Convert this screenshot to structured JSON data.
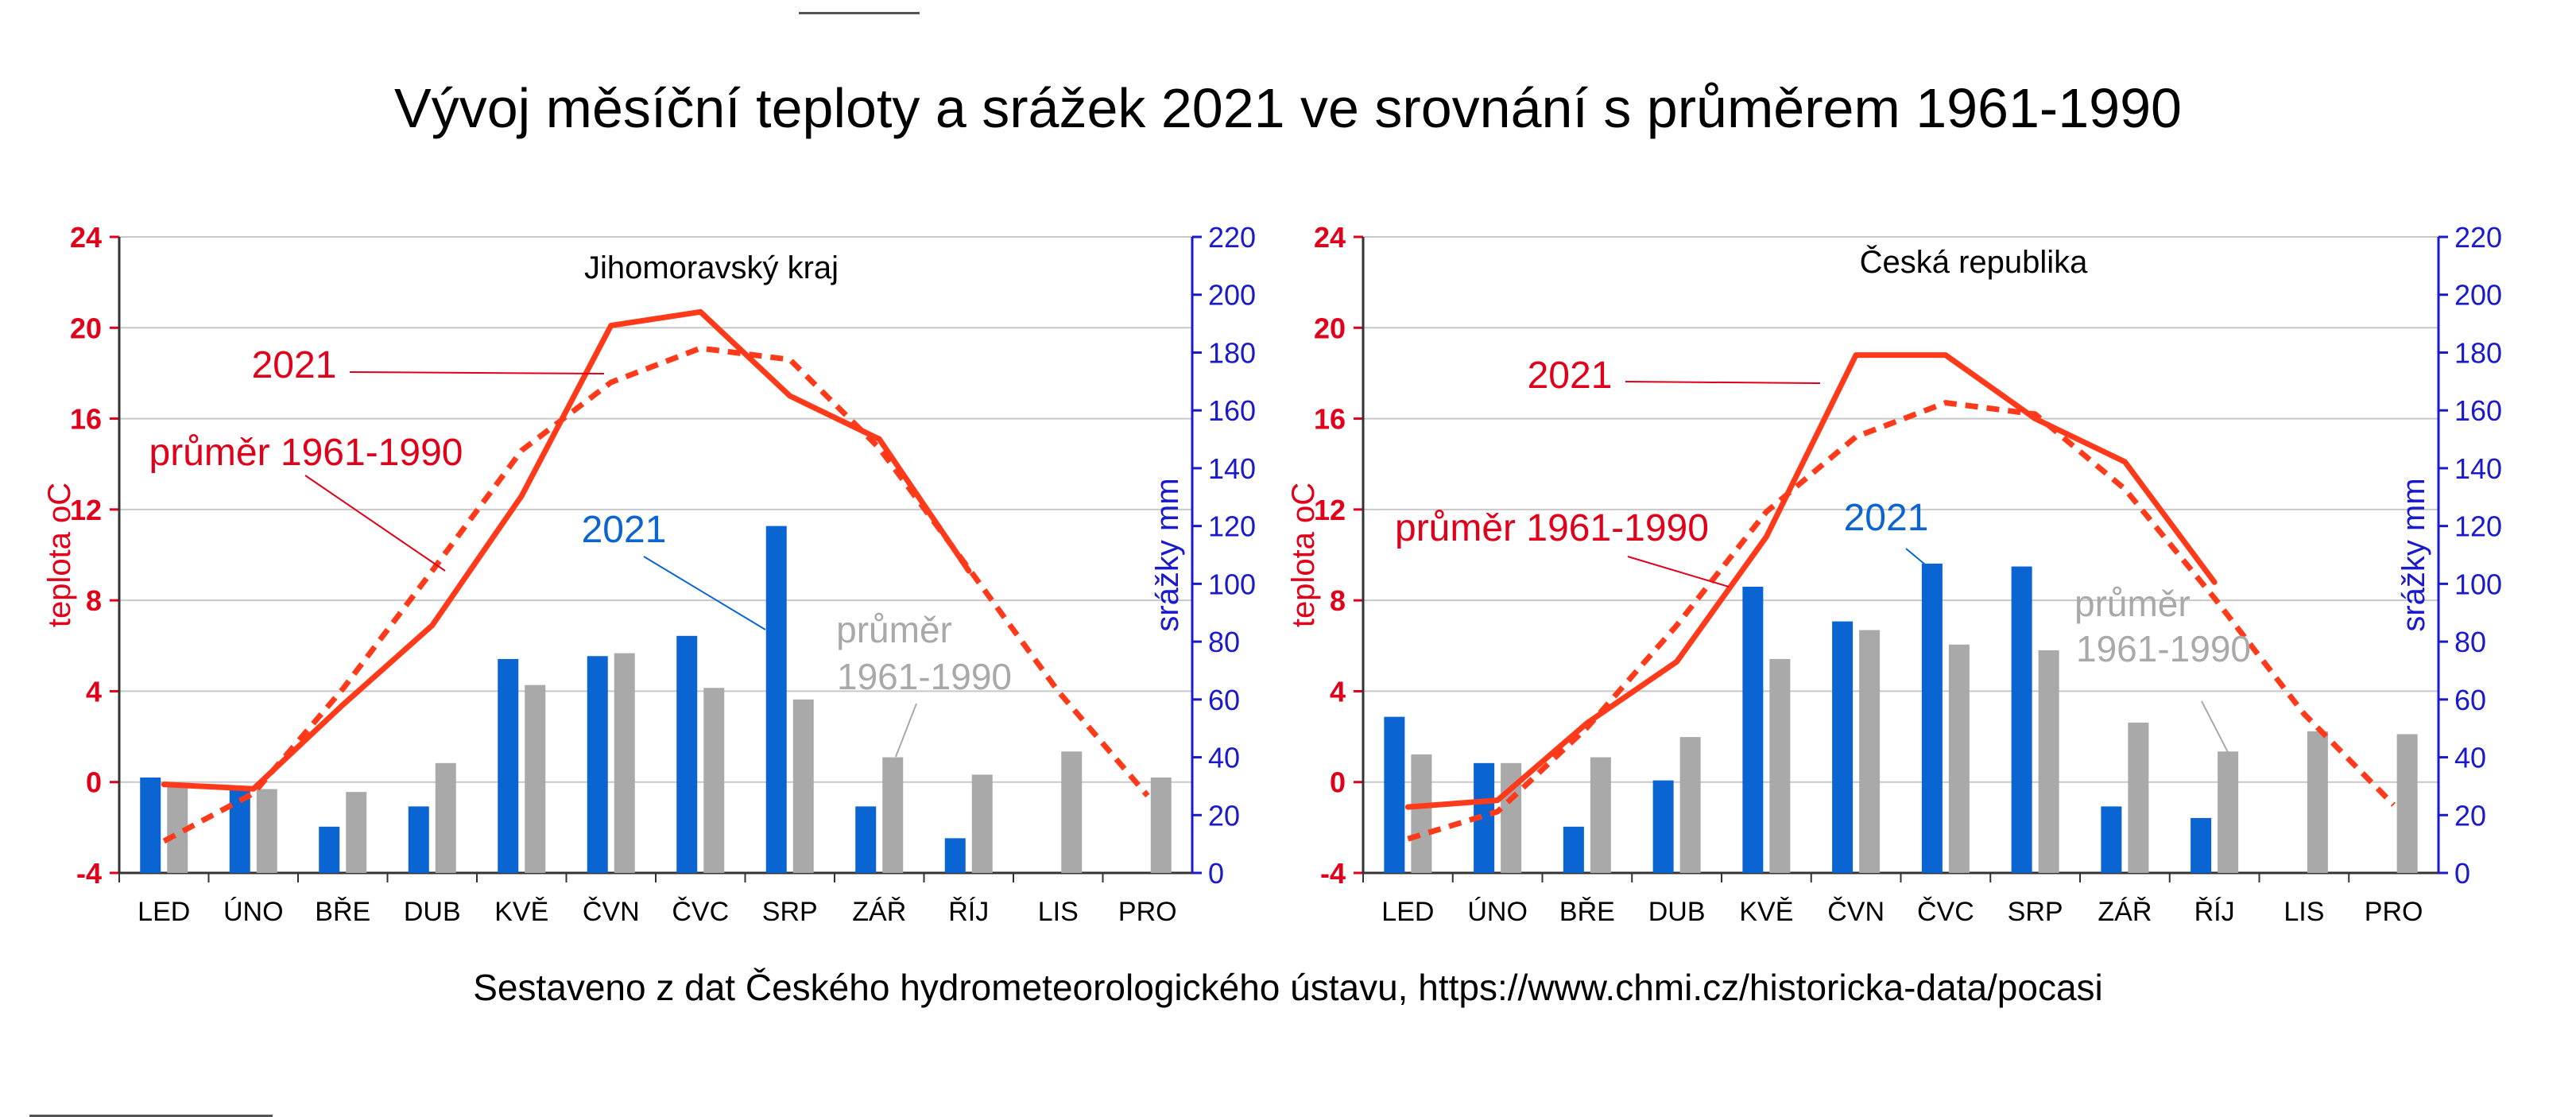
{
  "title": "Vývoj měsíční teploty a srážek 2021 ve srovnání s průměrem 1961-1990",
  "footer": "Sestaveno z dat Českého hydrometeorologického ústavu, https://www.chmi.cz/historicka-data/pocasi",
  "colors": {
    "temp_axis": "#e0001a",
    "precip_axis": "#1a1acc",
    "temp_line": "#ff3a1a",
    "precip_2021": "#0a64d2",
    "precip_avg": "#a9a9a9",
    "grid": "#c8c8c8"
  },
  "chart_data": [
    {
      "type": "bar+line",
      "title": "Jihomoravský kraj",
      "categories": [
        "LED",
        "ÚNO",
        "BŘE",
        "DUB",
        "KVĚ",
        "ČVN",
        "ČVC",
        "SRP",
        "ZÁŘ",
        "ŘÍJ",
        "LIS",
        "PRO"
      ],
      "ylabel": "teplota oC",
      "y2label": "srážky mm",
      "ylim": [
        -4,
        24
      ],
      "yticks": [
        -4,
        0,
        4,
        8,
        12,
        16,
        20,
        24
      ],
      "y2lim": [
        0,
        220
      ],
      "y2ticks": [
        0,
        20,
        40,
        60,
        80,
        100,
        120,
        140,
        160,
        180,
        200,
        220
      ],
      "temperature": {
        "2021": [
          -0.1,
          -0.3,
          3.4,
          6.9,
          12.6,
          20.1,
          20.7,
          17.0,
          15.1,
          9.3,
          null,
          null
        ],
        "avg": [
          -2.6,
          -0.5,
          4.1,
          9.3,
          14.6,
          17.6,
          19.1,
          18.6,
          14.7,
          9.4,
          4.0,
          -0.6
        ]
      },
      "precipitation": {
        "2021": [
          33,
          30,
          16,
          23,
          74,
          75,
          82,
          120,
          23,
          12,
          null,
          null
        ],
        "avg": [
          30,
          29,
          28,
          38,
          65,
          76,
          64,
          60,
          40,
          34,
          42,
          33
        ]
      },
      "annotations": [
        {
          "text": "2021"
        },
        {
          "text": "průměr 1961-1990"
        },
        {
          "text": "2021"
        },
        {
          "text": "průměr"
        },
        {
          "text": "1961-1990"
        }
      ]
    },
    {
      "type": "bar+line",
      "title": "Česká republika",
      "categories": [
        "LED",
        "ÚNO",
        "BŘE",
        "DUB",
        "KVĚ",
        "ČVN",
        "ČVC",
        "SRP",
        "ZÁŘ",
        "ŘÍJ",
        "LIS",
        "PRO"
      ],
      "ylabel": "teplota oC",
      "y2label": "srážky mm",
      "ylim": [
        -4,
        24
      ],
      "yticks": [
        -4,
        0,
        4,
        8,
        12,
        16,
        20,
        24
      ],
      "y2lim": [
        0,
        220
      ],
      "y2ticks": [
        0,
        20,
        40,
        60,
        80,
        100,
        120,
        140,
        160,
        180,
        200,
        220
      ],
      "temperature": {
        "2021": [
          -1.1,
          -0.8,
          2.6,
          5.3,
          10.8,
          18.8,
          18.8,
          16.0,
          14.1,
          8.8,
          null,
          null
        ],
        "avg": [
          -2.5,
          -1.3,
          2.4,
          6.9,
          11.9,
          15.2,
          16.7,
          16.2,
          12.9,
          8.1,
          3.0,
          -1.0
        ]
      },
      "precipitation": {
        "2021": [
          54,
          38,
          16,
          32,
          99,
          87,
          107,
          106,
          23,
          19,
          null,
          null
        ],
        "avg": [
          41,
          38,
          40,
          47,
          74,
          84,
          79,
          77,
          52,
          42,
          49,
          48
        ]
      },
      "annotations": [
        {
          "text": "2021"
        },
        {
          "text": "průměr 1961-1990"
        },
        {
          "text": "2021"
        },
        {
          "text": "průměr"
        },
        {
          "text": "1961-1990"
        }
      ]
    }
  ]
}
